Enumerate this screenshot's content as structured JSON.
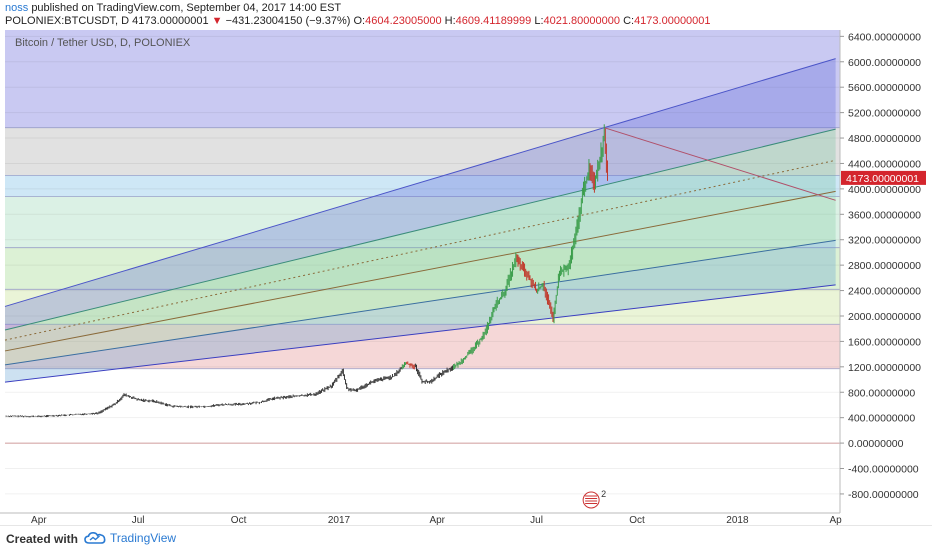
{
  "header": {
    "author": "noss",
    "published": "published on TradingView.com, September 04, 2017 14:00 EST",
    "symbol": "POLONIEX:BTCUSDT, D",
    "last": "4173.00000001",
    "change": "−431.23004150 (−9.37%)",
    "open_label": "O:",
    "open_value": "4604.23005000",
    "high_label": "H:",
    "high_value": "4609.41189999",
    "low_label": "L:",
    "low_value": "4021.80000000",
    "close_label": "C:",
    "close_value": "4173.00000001"
  },
  "chart_data": {
    "type": "line",
    "title": "Bitcoin / Tether USD, D, POLONIEX",
    "y_ticks": [
      "6400.00000000",
      "6000.00000000",
      "5600.00000000",
      "5200.00000000",
      "4800.00000000",
      "4400.00000000",
      "4000.00000000",
      "3600.00000000",
      "3200.00000000",
      "2800.00000000",
      "2400.00000000",
      "2000.00000000",
      "1600.00000000",
      "1200.00000000",
      "800.00000000",
      "400.00000000",
      "0.00000000",
      "-400.00000000",
      "-800.00000000"
    ],
    "x_ticks": [
      "Apr",
      "Jul",
      "Oct",
      "2017",
      "Apr",
      "Jul",
      "Oct",
      "2018",
      "Ap"
    ],
    "ylim": [
      -1100,
      6500
    ],
    "last_price_label": "4173.00000001",
    "price_points": [
      [
        "2016-03-01",
        425
      ],
      [
        "2016-04-01",
        420
      ],
      [
        "2016-05-01",
        445
      ],
      [
        "2016-05-25",
        470
      ],
      [
        "2016-06-10",
        620
      ],
      [
        "2016-06-18",
        760
      ],
      [
        "2016-07-01",
        680
      ],
      [
        "2016-07-15",
        660
      ],
      [
        "2016-08-01",
        580
      ],
      [
        "2016-08-15",
        570
      ],
      [
        "2016-09-01",
        575
      ],
      [
        "2016-09-15",
        605
      ],
      [
        "2016-10-01",
        610
      ],
      [
        "2016-10-20",
        640
      ],
      [
        "2016-11-01",
        700
      ],
      [
        "2016-11-20",
        735
      ],
      [
        "2016-12-10",
        770
      ],
      [
        "2016-12-25",
        900
      ],
      [
        "2017-01-04",
        1140
      ],
      [
        "2017-01-08",
        860
      ],
      [
        "2017-01-15",
        820
      ],
      [
        "2017-02-01",
        970
      ],
      [
        "2017-02-20",
        1050
      ],
      [
        "2017-03-03",
        1260
      ],
      [
        "2017-03-12",
        1200
      ],
      [
        "2017-03-18",
        970
      ],
      [
        "2017-03-25",
        960
      ],
      [
        "2017-04-05",
        1100
      ],
      [
        "2017-04-20",
        1240
      ],
      [
        "2017-05-05",
        1500
      ],
      [
        "2017-05-15",
        1750
      ],
      [
        "2017-05-25",
        2200
      ],
      [
        "2017-06-01",
        2350
      ],
      [
        "2017-06-12",
        2900
      ],
      [
        "2017-06-20",
        2700
      ],
      [
        "2017-07-01",
        2400
      ],
      [
        "2017-07-07",
        2500
      ],
      [
        "2017-07-16",
        1950
      ],
      [
        "2017-07-22",
        2700
      ],
      [
        "2017-07-30",
        2750
      ],
      [
        "2017-08-05",
        3200
      ],
      [
        "2017-08-13",
        4000
      ],
      [
        "2017-08-18",
        4300
      ],
      [
        "2017-08-23",
        4100
      ],
      [
        "2017-08-30",
        4650
      ],
      [
        "2017-09-01",
        4900
      ],
      [
        "2017-09-04",
        4173
      ]
    ],
    "fib_levels": [
      {
        "level": 1.0,
        "y": 4963,
        "color": "#a1a4ea"
      },
      {
        "level": 0.786,
        "y": 4212,
        "color": "#dedede"
      },
      {
        "level": 0.618,
        "y": 3880,
        "color": "#c9e4f5"
      },
      {
        "level": 0.5,
        "y": 3075,
        "color": "#d7efe2"
      },
      {
        "level": 0.382,
        "y": 2420,
        "color": "#d8f0d0"
      },
      {
        "level": 0.236,
        "y": 1870,
        "color": "#e8f3d3"
      },
      {
        "level": 0.0,
        "y": 1170,
        "color": "#f4d3d3"
      },
      {
        "level": -0.236,
        "y": 0,
        "color": "#ffffff"
      }
    ],
    "pitchfork_lines": [
      {
        "from": [
          "2016-03-01",
          2150
        ],
        "to": [
          "2018-04-01",
          6050
        ],
        "color": "#4b55c8"
      },
      {
        "from": [
          "2016-03-01",
          1780
        ],
        "to": [
          "2018-04-01",
          4940
        ],
        "color": "#3a8c7a"
      },
      {
        "from": [
          "2016-03-01",
          1450
        ],
        "to": [
          "2018-04-01",
          3960
        ],
        "color": "#8a6a3a"
      },
      {
        "from": [
          "2016-03-01",
          1230
        ],
        "to": [
          "2018-04-01",
          3190
        ],
        "color": "#3a6ea0"
      },
      {
        "from": [
          "2016-03-01",
          960
        ],
        "to": [
          "2018-04-01",
          2490
        ],
        "color": "#3a3ec0"
      }
    ],
    "grid": true
  },
  "colors": {
    "up_candle": "#3a9d4a",
    "down_candle": "#c0392b",
    "price_label_bg": "#d4252d",
    "axis_text": "#333333"
  },
  "footer": {
    "created": "Created with",
    "brand": "TradingView",
    "brand_icon": "tradingview-cloud-icon"
  },
  "badge": {
    "text": "2",
    "icon": "flag-badge-icon"
  }
}
